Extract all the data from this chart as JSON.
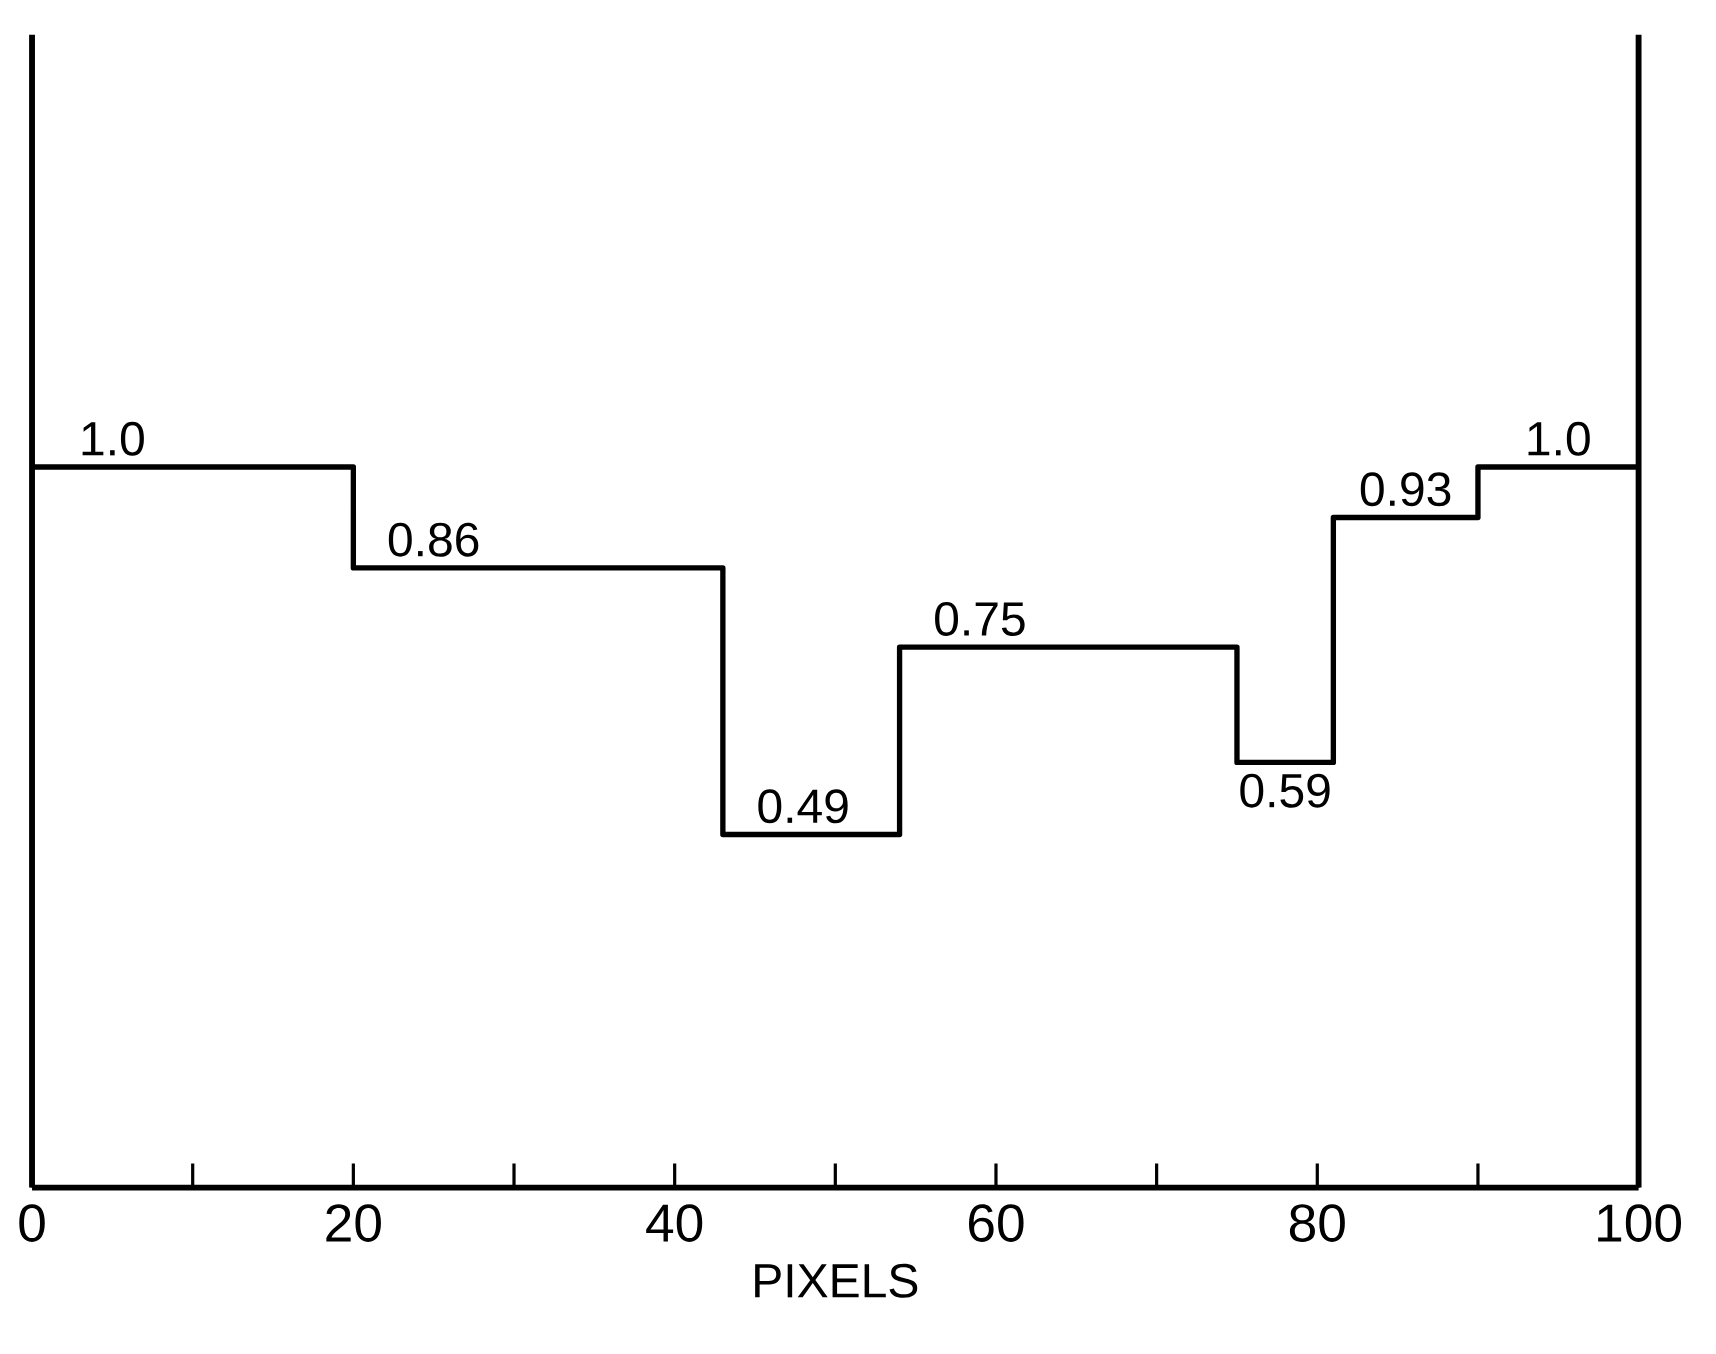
{
  "chart_data": {
    "type": "step",
    "xlabel": "PIXELS",
    "x": [
      0,
      20,
      43,
      54,
      75,
      81,
      90,
      100
    ],
    "values": [
      1.0,
      0.86,
      0.49,
      0.75,
      0.59,
      0.93,
      1.0,
      1.0
    ],
    "value_labels": [
      "1.0",
      "0.86",
      "0.49",
      "0.75",
      "0.59",
      "0.93",
      "1.0",
      null
    ],
    "color": "#000000",
    "xlim": [
      0,
      100
    ],
    "ylim": [
      0,
      1.6
    ],
    "xticks": [
      0,
      {
        "value": 10,
        "label": null
      },
      20,
      {
        "value": 30,
        "label": null
      },
      40,
      {
        "value": 50,
        "label": null
      },
      60,
      {
        "value": 70,
        "label": null
      },
      80,
      {
        "value": 90,
        "label": null
      },
      100
    ],
    "tick_labels": "x"
  }
}
